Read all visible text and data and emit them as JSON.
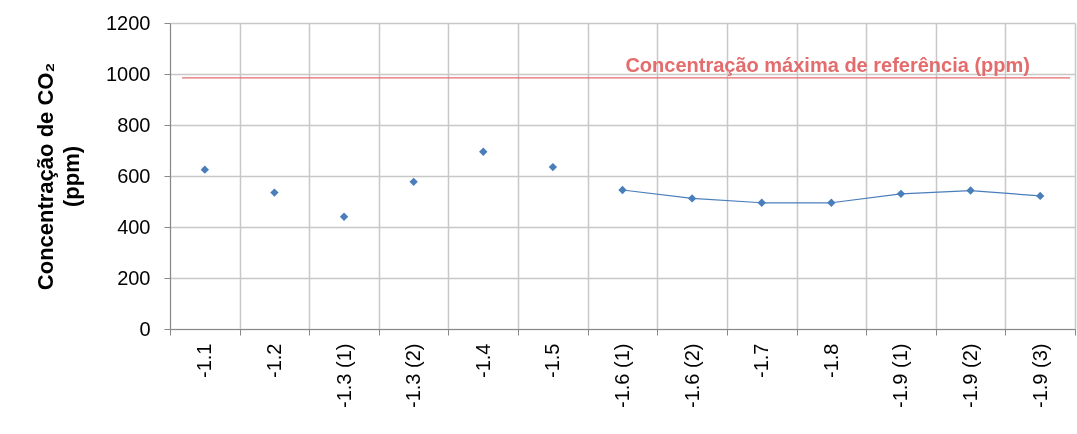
{
  "chart_data": {
    "type": "scatter",
    "ylabel": "Concentração de CO₂\n(ppm)",
    "categories": [
      "-1.1",
      "-1.2",
      "-1.3 (1)",
      "-1.3 (2)",
      "-1.4",
      "-1.5",
      "-1.6 (1)",
      "-1.6 (2)",
      "-1.7",
      "-1.8",
      "-1.9 (1)",
      "-1.9 (2)",
      "-1.9 (3)"
    ],
    "series": [
      {
        "type": "scatter",
        "color": "#4a7ebb",
        "values": [
          625,
          535,
          440,
          577,
          695,
          635,
          null,
          null,
          null,
          null,
          null,
          null,
          null
        ]
      },
      {
        "type": "line",
        "color": "#4a7ebb",
        "values": [
          null,
          null,
          null,
          null,
          null,
          null,
          545,
          512,
          495,
          495,
          530,
          543,
          522
        ]
      }
    ],
    "ylim": [
      0,
      1200
    ],
    "yticks": [
      0,
      200,
      400,
      600,
      800,
      1000,
      1200
    ],
    "grid": true,
    "marker": "diamond",
    "line_style": "solid",
    "ref_lines": [
      {
        "axis": "y",
        "value": 985,
        "label": "Concentração máxima de referência (ppm)",
        "color": "#e46c6c"
      }
    ]
  }
}
